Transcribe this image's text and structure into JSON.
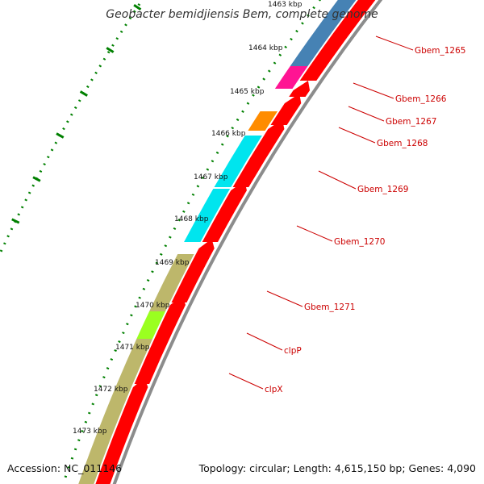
{
  "title": "Geobacter bemidjiensis Bem, complete genome",
  "footer": {
    "accession": "Accession: NC_011146",
    "topology": "Topology: circular; Length: 4,615,150 bp; Genes: 4,090"
  },
  "colors": {
    "backbone": "#8c8c8c",
    "cds": "#ff0000",
    "ruler": "#008000",
    "label": "#cc0000",
    "olive": "#bdb76b",
    "steelblue": "#4682b4",
    "magenta": "#ff1493",
    "orange": "#ff8c00",
    "cyan": "#00e5ee",
    "lime": "#9aff20"
  },
  "ruler": {
    "unit": "kbp",
    "ticks": [
      "1463 kbp",
      "1464 kbp",
      "1465 kbp",
      "1466 kbp",
      "1467 kbp",
      "1468 kbp",
      "1469 kbp",
      "1470 kbp",
      "1471 kbp",
      "1472 kbp",
      "1473 kbp"
    ]
  },
  "genes": [
    {
      "name": "Gbem_1265",
      "color_key": "steelblue"
    },
    {
      "name": "Gbem_1266",
      "color_key": "magenta"
    },
    {
      "name": "Gbem_1267",
      "color_key": "cds"
    },
    {
      "name": "Gbem_1268",
      "color_key": "orange"
    },
    {
      "name": "Gbem_1269",
      "color_key": "cyan"
    },
    {
      "name": "Gbem_1270",
      "color_key": "cyan"
    },
    {
      "name": "Gbem_1271",
      "color_key": "olive"
    },
    {
      "name": "clpP",
      "color_key": "lime"
    },
    {
      "name": "clpX",
      "color_key": "olive"
    }
  ]
}
